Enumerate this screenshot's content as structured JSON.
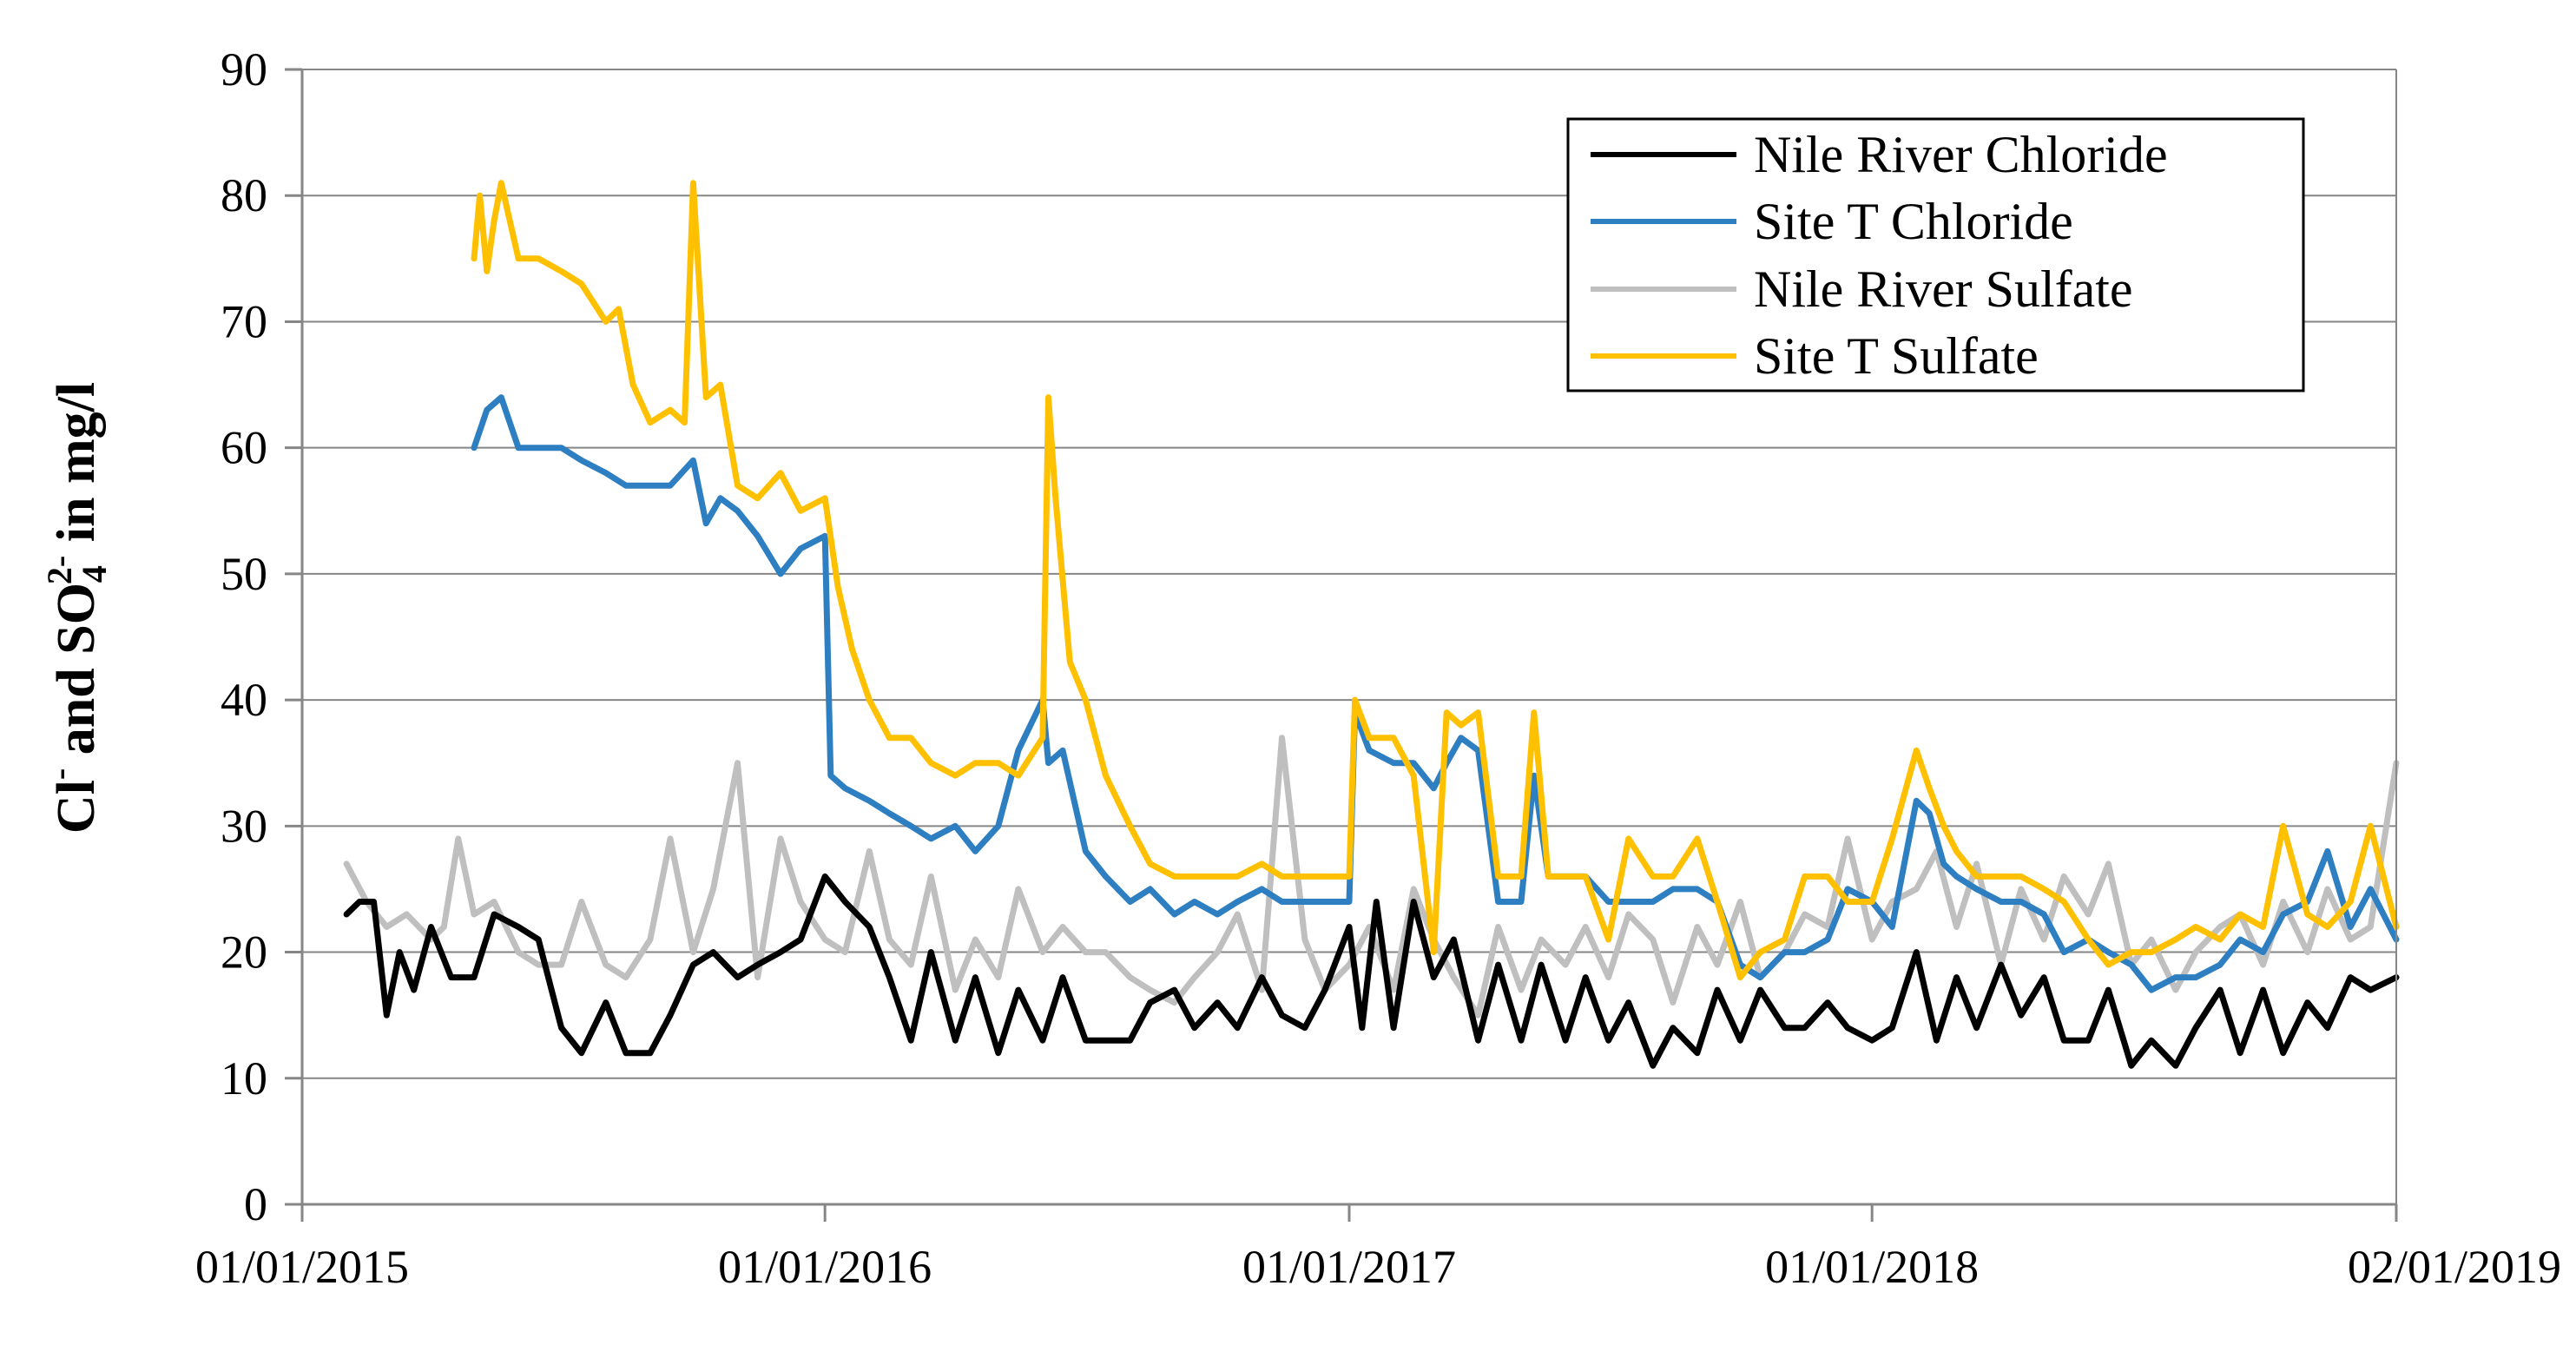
{
  "chart_data": {
    "type": "line",
    "ylabel": {
      "part1": "Cl",
      "sup1": "-",
      "part2": " and SO",
      "sub": "4",
      "sup2": "2-",
      "part3": "  in  mg/l"
    },
    "xlabel": "",
    "ylim": [
      0,
      90
    ],
    "yticks": [
      0,
      10,
      20,
      30,
      40,
      50,
      60,
      70,
      80,
      90
    ],
    "xlim": [
      "2015-01-01",
      "2019-01-02"
    ],
    "xticks": [
      "01/01/2015",
      "01/01/2016",
      "01/01/2017",
      "01/01/2018",
      "02/01/2019"
    ],
    "grid": "horizontal",
    "legend_position": "top-right",
    "series": [
      {
        "name": "Nile River Chloride",
        "color": "#000000",
        "x": [
          "2015-02-01",
          "2015-02-10",
          "2015-02-20",
          "2015-03-01",
          "2015-03-10",
          "2015-03-20",
          "2015-04-01",
          "2015-04-15",
          "2015-05-01",
          "2015-05-15",
          "2015-06-01",
          "2015-06-15",
          "2015-07-01",
          "2015-07-15",
          "2015-08-01",
          "2015-08-15",
          "2015-09-01",
          "2015-09-15",
          "2015-10-01",
          "2015-10-15",
          "2015-11-01",
          "2015-11-15",
          "2015-12-01",
          "2015-12-15",
          "2016-01-01",
          "2016-01-15",
          "2016-02-01",
          "2016-02-15",
          "2016-03-01",
          "2016-03-15",
          "2016-04-01",
          "2016-04-15",
          "2016-05-01",
          "2016-05-15",
          "2016-06-01",
          "2016-06-15",
          "2016-07-01",
          "2016-07-15",
          "2016-08-01",
          "2016-08-15",
          "2016-09-01",
          "2016-09-15",
          "2016-10-01",
          "2016-10-15",
          "2016-11-01",
          "2016-11-15",
          "2016-12-01",
          "2016-12-15",
          "2017-01-01",
          "2017-01-10",
          "2017-01-20",
          "2017-02-01",
          "2017-02-15",
          "2017-03-01",
          "2017-03-15",
          "2017-04-01",
          "2017-04-15",
          "2017-05-01",
          "2017-05-15",
          "2017-06-01",
          "2017-06-15",
          "2017-07-01",
          "2017-07-15",
          "2017-08-01",
          "2017-08-15",
          "2017-09-01",
          "2017-09-15",
          "2017-10-01",
          "2017-10-15",
          "2017-11-01",
          "2017-11-15",
          "2017-12-01",
          "2017-12-15",
          "2018-01-01",
          "2018-01-15",
          "2018-02-01",
          "2018-02-15",
          "2018-03-01",
          "2018-03-15",
          "2018-04-01",
          "2018-04-15",
          "2018-05-01",
          "2018-05-15",
          "2018-06-01",
          "2018-06-15",
          "2018-07-01",
          "2018-07-15",
          "2018-08-01",
          "2018-08-15",
          "2018-09-01",
          "2018-09-15",
          "2018-10-01",
          "2018-10-15",
          "2018-11-01",
          "2018-11-15",
          "2018-12-01",
          "2018-12-15",
          "2019-01-02"
        ],
        "values": [
          23,
          24,
          24,
          15,
          20,
          17,
          22,
          18,
          18,
          23,
          22,
          21,
          14,
          12,
          16,
          12,
          12,
          15,
          19,
          20,
          18,
          19,
          20,
          21,
          26,
          24,
          22,
          18,
          13,
          20,
          13,
          18,
          12,
          17,
          13,
          18,
          13,
          13,
          13,
          16,
          17,
          14,
          16,
          14,
          18,
          15,
          14,
          17,
          22,
          14,
          24,
          14,
          24,
          18,
          21,
          13,
          19,
          13,
          19,
          13,
          18,
          13,
          16,
          11,
          14,
          12,
          17,
          13,
          17,
          14,
          14,
          16,
          14,
          13,
          14,
          20,
          13,
          18,
          14,
          19,
          15,
          18,
          13,
          13,
          17,
          11,
          13,
          11,
          14,
          17,
          12,
          17,
          12,
          16,
          14,
          18,
          17,
          18
        ]
      },
      {
        "name": "Site T Chloride",
        "color": "#2E7FC1",
        "x": [
          "2015-05-01",
          "2015-05-10",
          "2015-05-20",
          "2015-06-01",
          "2015-06-15",
          "2015-07-01",
          "2015-07-15",
          "2015-08-01",
          "2015-08-15",
          "2015-09-01",
          "2015-09-15",
          "2015-10-01",
          "2015-10-10",
          "2015-10-20",
          "2015-11-01",
          "2015-11-15",
          "2015-12-01",
          "2015-12-15",
          "2016-01-01",
          "2016-01-05",
          "2016-01-15",
          "2016-02-01",
          "2016-02-15",
          "2016-03-01",
          "2016-03-15",
          "2016-04-01",
          "2016-04-15",
          "2016-05-01",
          "2016-05-15",
          "2016-06-01",
          "2016-06-05",
          "2016-06-15",
          "2016-07-01",
          "2016-07-15",
          "2016-08-01",
          "2016-08-15",
          "2016-09-01",
          "2016-09-15",
          "2016-10-01",
          "2016-10-15",
          "2016-11-01",
          "2016-11-15",
          "2016-12-01",
          "2016-12-15",
          "2017-01-01",
          "2017-01-05",
          "2017-01-15",
          "2017-02-01",
          "2017-02-15",
          "2017-03-01",
          "2017-03-10",
          "2017-03-20",
          "2017-04-01",
          "2017-04-15",
          "2017-05-01",
          "2017-05-10",
          "2017-05-20",
          "2017-06-01",
          "2017-06-15",
          "2017-07-01",
          "2017-07-15",
          "2017-08-01",
          "2017-08-15",
          "2017-09-01",
          "2017-09-15",
          "2017-10-01",
          "2017-10-15",
          "2017-11-01",
          "2017-11-15",
          "2017-12-01",
          "2017-12-15",
          "2018-01-01",
          "2018-01-15",
          "2018-02-01",
          "2018-02-10",
          "2018-02-20",
          "2018-03-01",
          "2018-03-15",
          "2018-04-01",
          "2018-04-15",
          "2018-05-01",
          "2018-05-15",
          "2018-06-01",
          "2018-06-15",
          "2018-07-01",
          "2018-07-15",
          "2018-08-01",
          "2018-08-15",
          "2018-09-01",
          "2018-09-15",
          "2018-10-01",
          "2018-10-15",
          "2018-11-01",
          "2018-11-15",
          "2018-12-01",
          "2018-12-15",
          "2019-01-02"
        ],
        "values": [
          60,
          63,
          64,
          60,
          60,
          60,
          59,
          58,
          57,
          57,
          57,
          59,
          54,
          56,
          55,
          53,
          50,
          52,
          53,
          34,
          33,
          32,
          31,
          30,
          29,
          30,
          28,
          30,
          36,
          40,
          35,
          36,
          28,
          26,
          24,
          25,
          23,
          24,
          23,
          24,
          25,
          24,
          24,
          24,
          24,
          39,
          36,
          35,
          35,
          33,
          35,
          37,
          36,
          24,
          24,
          34,
          26,
          26,
          26,
          24,
          24,
          24,
          25,
          25,
          24,
          19,
          18,
          20,
          20,
          21,
          25,
          24,
          22,
          32,
          31,
          27,
          26,
          25,
          24,
          24,
          23,
          20,
          21,
          20,
          19,
          17,
          18,
          18,
          19,
          21,
          20,
          23,
          24,
          28,
          22,
          25,
          21
        ]
      },
      {
        "name": "Nile River Sulfate",
        "color": "#BFBFBF",
        "x": [
          "2015-02-01",
          "2015-02-15",
          "2015-03-01",
          "2015-03-15",
          "2015-04-01",
          "2015-04-10",
          "2015-04-20",
          "2015-05-01",
          "2015-05-15",
          "2015-06-01",
          "2015-06-15",
          "2015-07-01",
          "2015-07-15",
          "2015-08-01",
          "2015-08-15",
          "2015-09-01",
          "2015-09-15",
          "2015-10-01",
          "2015-10-15",
          "2015-11-01",
          "2015-11-15",
          "2015-12-01",
          "2015-12-15",
          "2016-01-01",
          "2016-01-15",
          "2016-02-01",
          "2016-02-15",
          "2016-03-01",
          "2016-03-15",
          "2016-04-01",
          "2016-04-15",
          "2016-05-01",
          "2016-05-15",
          "2016-06-01",
          "2016-06-15",
          "2016-07-01",
          "2016-07-15",
          "2016-08-01",
          "2016-08-15",
          "2016-09-01",
          "2016-09-15",
          "2016-10-01",
          "2016-10-15",
          "2016-11-01",
          "2016-11-15",
          "2016-12-01",
          "2016-12-15",
          "2017-01-01",
          "2017-01-15",
          "2017-02-01",
          "2017-02-15",
          "2017-03-01",
          "2017-03-15",
          "2017-04-01",
          "2017-04-15",
          "2017-05-01",
          "2017-05-15",
          "2017-06-01",
          "2017-06-15",
          "2017-07-01",
          "2017-07-15",
          "2017-08-01",
          "2017-08-15",
          "2017-09-01",
          "2017-09-15",
          "2017-10-01",
          "2017-10-15",
          "2017-11-01",
          "2017-11-15",
          "2017-12-01",
          "2017-12-15",
          "2018-01-01",
          "2018-01-15",
          "2018-02-01",
          "2018-02-15",
          "2018-03-01",
          "2018-03-15",
          "2018-04-01",
          "2018-04-15",
          "2018-05-01",
          "2018-05-15",
          "2018-06-01",
          "2018-06-15",
          "2018-07-01",
          "2018-07-15",
          "2018-08-01",
          "2018-08-15",
          "2018-09-01",
          "2018-09-15",
          "2018-10-01",
          "2018-10-15",
          "2018-11-01",
          "2018-11-15",
          "2018-12-01",
          "2018-12-15",
          "2019-01-02"
        ],
        "values": [
          27,
          24,
          22,
          23,
          21,
          22,
          29,
          23,
          24,
          20,
          19,
          19,
          24,
          19,
          18,
          21,
          29,
          20,
          25,
          35,
          18,
          29,
          24,
          21,
          20,
          28,
          21,
          19,
          26,
          17,
          21,
          18,
          25,
          20,
          22,
          20,
          20,
          18,
          17,
          16,
          18,
          20,
          23,
          17,
          37,
          21,
          17,
          19,
          22,
          17,
          25,
          21,
          18,
          15,
          22,
          17,
          21,
          19,
          22,
          18,
          23,
          21,
          16,
          22,
          19,
          24,
          18,
          20,
          23,
          22,
          29,
          21,
          24,
          25,
          28,
          22,
          27,
          19,
          25,
          21,
          26,
          23,
          27,
          19,
          21,
          17,
          20,
          22,
          23,
          19,
          24,
          20,
          25,
          21,
          22,
          35
        ]
      },
      {
        "name": "Site T Sulfate",
        "color": "#FFC000",
        "x": [
          "2015-05-01",
          "2015-05-05",
          "2015-05-10",
          "2015-05-15",
          "2015-05-20",
          "2015-06-01",
          "2015-06-15",
          "2015-07-01",
          "2015-07-15",
          "2015-08-01",
          "2015-08-10",
          "2015-08-20",
          "2015-09-01",
          "2015-09-15",
          "2015-09-25",
          "2015-10-01",
          "2015-10-10",
          "2015-10-20",
          "2015-11-01",
          "2015-11-15",
          "2015-12-01",
          "2015-12-15",
          "2016-01-01",
          "2016-01-10",
          "2016-01-20",
          "2016-02-01",
          "2016-02-15",
          "2016-03-01",
          "2016-03-15",
          "2016-04-01",
          "2016-04-15",
          "2016-05-01",
          "2016-05-15",
          "2016-06-01",
          "2016-06-05",
          "2016-06-10",
          "2016-06-20",
          "2016-07-01",
          "2016-07-15",
          "2016-08-01",
          "2016-08-15",
          "2016-09-01",
          "2016-09-15",
          "2016-10-01",
          "2016-10-15",
          "2016-11-01",
          "2016-11-15",
          "2016-12-01",
          "2016-12-15",
          "2017-01-01",
          "2017-01-05",
          "2017-01-15",
          "2017-02-01",
          "2017-02-15",
          "2017-03-01",
          "2017-03-10",
          "2017-03-20",
          "2017-04-01",
          "2017-04-15",
          "2017-05-01",
          "2017-05-10",
          "2017-05-20",
          "2017-06-01",
          "2017-06-15",
          "2017-07-01",
          "2017-07-15",
          "2017-08-01",
          "2017-08-15",
          "2017-09-01",
          "2017-09-15",
          "2017-10-01",
          "2017-10-15",
          "2017-11-01",
          "2017-11-15",
          "2017-12-01",
          "2017-12-15",
          "2018-01-01",
          "2018-01-15",
          "2018-02-01",
          "2018-02-10",
          "2018-02-20",
          "2018-03-01",
          "2018-03-15",
          "2018-04-01",
          "2018-04-15",
          "2018-05-01",
          "2018-05-15",
          "2018-06-01",
          "2018-06-15",
          "2018-07-01",
          "2018-07-15",
          "2018-08-01",
          "2018-08-15",
          "2018-09-01",
          "2018-09-15",
          "2018-10-01",
          "2018-10-15",
          "2018-11-01",
          "2018-11-15",
          "2018-12-01",
          "2018-12-15",
          "2019-01-02"
        ],
        "values": [
          75,
          80,
          74,
          78,
          81,
          75,
          75,
          74,
          73,
          70,
          71,
          65,
          62,
          63,
          62,
          81,
          64,
          65,
          57,
          56,
          58,
          55,
          56,
          49,
          44,
          40,
          37,
          37,
          35,
          34,
          35,
          35,
          34,
          37,
          64,
          56,
          43,
          40,
          34,
          30,
          27,
          26,
          26,
          26,
          26,
          27,
          26,
          26,
          26,
          26,
          40,
          37,
          37,
          34,
          20,
          39,
          38,
          39,
          26,
          26,
          39,
          26,
          26,
          26,
          21,
          29,
          26,
          26,
          29,
          24,
          18,
          20,
          21,
          26,
          26,
          24,
          24,
          29,
          36,
          33,
          30,
          28,
          26,
          26,
          26,
          25,
          24,
          21,
          19,
          20,
          20,
          21,
          22,
          21,
          23,
          22,
          30,
          23,
          22,
          24,
          30,
          22
        ]
      }
    ]
  }
}
